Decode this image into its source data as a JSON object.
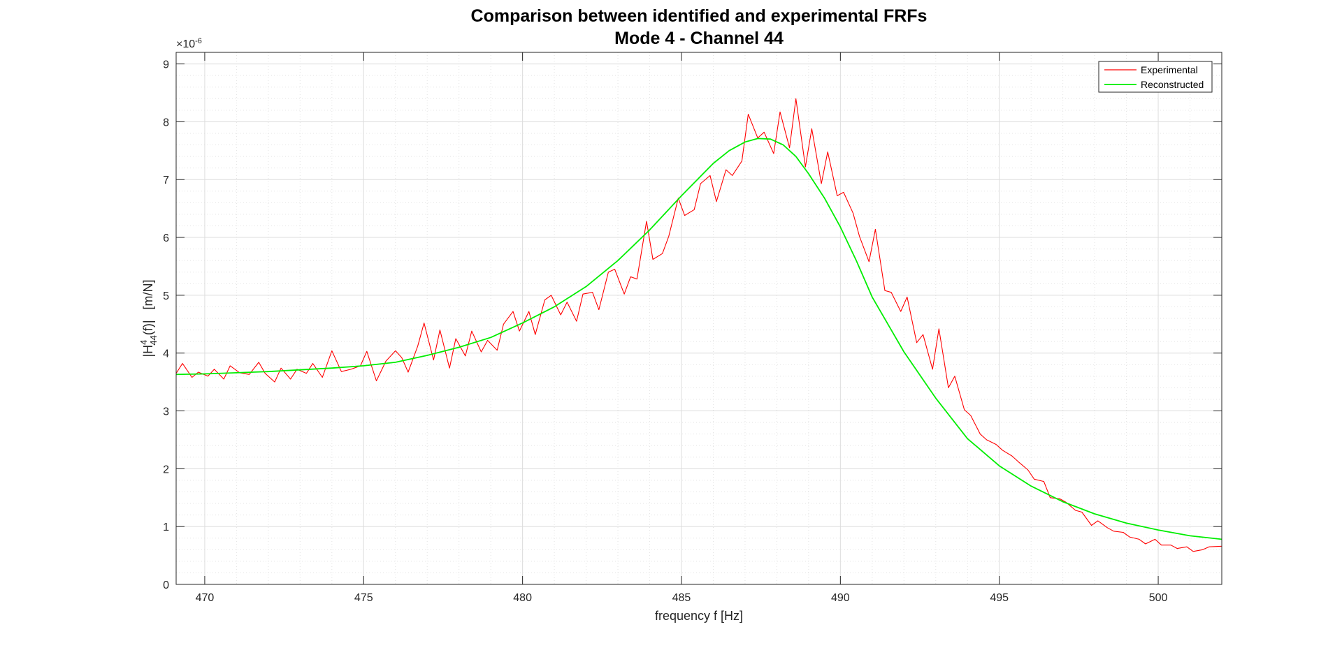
{
  "chart_data": {
    "type": "line",
    "title": "Comparison between identified and experimental FRFs",
    "subtitle": "Mode 4 - Channel 44",
    "xlabel": "frequency f [Hz]",
    "ylabel": "|H44(f)|   [m/N]",
    "ylabel_parts": {
      "open": "|H",
      "sup": "4",
      "sub": "44",
      "close": "(f)|   [m/N]"
    },
    "y_exponent_label": "×10",
    "y_exponent": "-6",
    "xlim": [
      469.1,
      502.0
    ],
    "ylim": [
      0,
      9.2
    ],
    "x_ticks": [
      470,
      475,
      480,
      485,
      490,
      495,
      500
    ],
    "y_ticks": [
      0,
      1,
      2,
      3,
      4,
      5,
      6,
      7,
      8,
      9
    ],
    "grid": true,
    "minor_grid": true,
    "legend_position": "top-right",
    "colors": {
      "Experimental": "#ff0000",
      "Reconstructed": "#00ee00"
    },
    "series": [
      {
        "name": "Experimental",
        "x": [
          469.1,
          469.3,
          469.6,
          469.8,
          470.1,
          470.3,
          470.6,
          470.8,
          471.1,
          471.4,
          471.7,
          471.9,
          472.2,
          472.4,
          472.7,
          472.9,
          473.2,
          473.4,
          473.7,
          474.0,
          474.3,
          474.6,
          474.9,
          475.1,
          475.4,
          475.7,
          476.0,
          476.2,
          476.4,
          476.7,
          476.9,
          477.2,
          477.4,
          477.7,
          477.9,
          478.2,
          478.4,
          478.7,
          478.9,
          479.2,
          479.4,
          479.7,
          479.9,
          480.2,
          480.4,
          480.7,
          480.9,
          481.2,
          481.4,
          481.7,
          481.9,
          482.2,
          482.4,
          482.7,
          482.9,
          483.2,
          483.4,
          483.6,
          483.9,
          484.1,
          484.4,
          484.6,
          484.9,
          485.1,
          485.4,
          485.6,
          485.9,
          486.1,
          486.4,
          486.6,
          486.9,
          487.1,
          487.4,
          487.6,
          487.9,
          488.1,
          488.4,
          488.6,
          488.9,
          489.1,
          489.4,
          489.6,
          489.9,
          490.1,
          490.4,
          490.6,
          490.9,
          491.1,
          491.4,
          491.6,
          491.9,
          492.1,
          492.4,
          492.6,
          492.9,
          493.1,
          493.4,
          493.6,
          493.9,
          494.1,
          494.4,
          494.6,
          494.9,
          495.1,
          495.4,
          495.6,
          495.9,
          496.1,
          496.4,
          496.6,
          496.9,
          497.1,
          497.4,
          497.6,
          497.9,
          498.1,
          498.4,
          498.6,
          498.9,
          499.1,
          499.4,
          499.6,
          499.9,
          500.1,
          500.4,
          500.6,
          500.9,
          501.1,
          501.4,
          501.6,
          502.0
        ],
        "y": [
          3.65,
          3.82,
          3.58,
          3.67,
          3.6,
          3.72,
          3.55,
          3.78,
          3.66,
          3.63,
          3.84,
          3.65,
          3.5,
          3.74,
          3.55,
          3.72,
          3.65,
          3.82,
          3.58,
          4.04,
          3.68,
          3.72,
          3.78,
          4.03,
          3.52,
          3.86,
          4.04,
          3.92,
          3.67,
          4.12,
          4.52,
          3.88,
          4.4,
          3.74,
          4.25,
          3.95,
          4.38,
          4.02,
          4.22,
          4.05,
          4.5,
          4.72,
          4.38,
          4.72,
          4.32,
          4.92,
          5.0,
          4.66,
          4.88,
          4.55,
          5.02,
          5.05,
          4.75,
          5.4,
          5.45,
          5.02,
          5.32,
          5.28,
          6.28,
          5.62,
          5.72,
          6.02,
          6.68,
          6.38,
          6.48,
          6.93,
          7.07,
          6.62,
          7.17,
          7.07,
          7.32,
          8.13,
          7.72,
          7.82,
          7.45,
          8.17,
          7.55,
          8.4,
          7.22,
          7.88,
          6.93,
          7.48,
          6.72,
          6.78,
          6.42,
          6.02,
          5.58,
          6.14,
          5.08,
          5.05,
          4.72,
          4.97,
          4.18,
          4.32,
          3.72,
          4.42,
          3.4,
          3.6,
          3.02,
          2.92,
          2.6,
          2.5,
          2.42,
          2.32,
          2.22,
          2.12,
          1.98,
          1.82,
          1.78,
          1.5,
          1.48,
          1.42,
          1.28,
          1.25,
          1.02,
          1.1,
          0.98,
          0.92,
          0.9,
          0.82,
          0.78,
          0.7,
          0.78,
          0.68,
          0.68,
          0.62,
          0.65,
          0.57,
          0.6,
          0.65,
          0.66
        ]
      },
      {
        "name": "Reconstructed",
        "x": [
          469.1,
          470,
          471,
          472,
          473,
          474,
          475,
          476,
          477,
          478,
          479,
          480,
          481,
          482,
          483,
          484,
          485,
          485.5,
          486,
          486.5,
          487,
          487.4,
          487.8,
          488.2,
          488.6,
          489,
          489.5,
          490,
          490.5,
          491,
          492,
          493,
          494,
          495,
          496,
          497,
          498,
          499,
          500,
          501,
          502
        ],
        "y": [
          3.63,
          3.64,
          3.66,
          3.68,
          3.71,
          3.74,
          3.78,
          3.84,
          3.96,
          4.1,
          4.27,
          4.52,
          4.8,
          5.15,
          5.6,
          6.13,
          6.72,
          7.0,
          7.28,
          7.5,
          7.65,
          7.71,
          7.7,
          7.6,
          7.4,
          7.1,
          6.68,
          6.18,
          5.6,
          4.97,
          4.02,
          3.22,
          2.52,
          2.05,
          1.7,
          1.43,
          1.22,
          1.06,
          0.94,
          0.84,
          0.78
        ]
      }
    ]
  }
}
